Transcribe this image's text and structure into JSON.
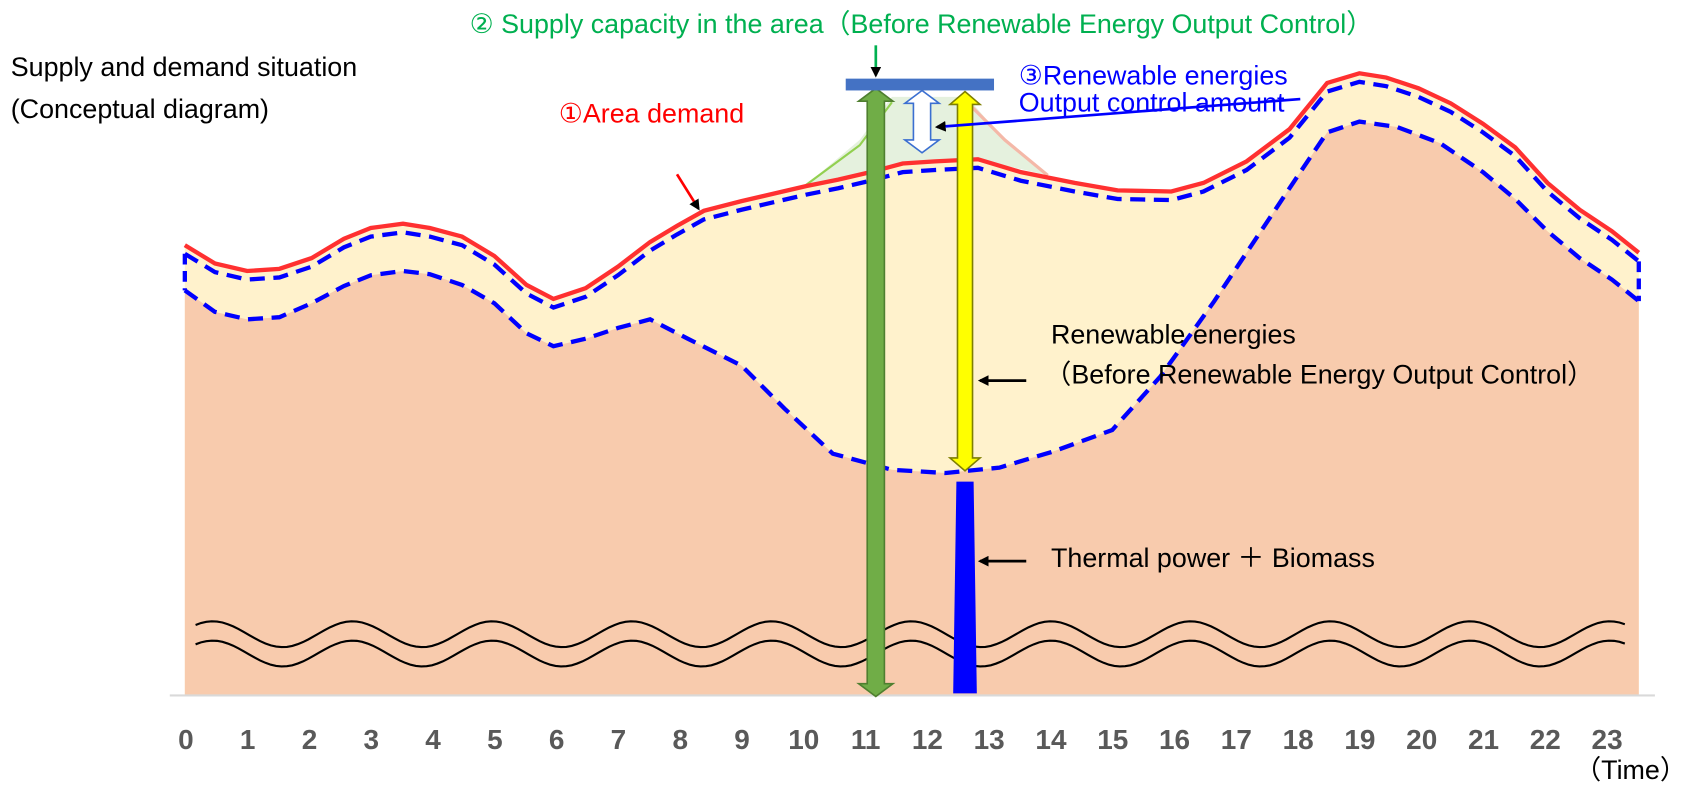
{
  "title": [
    "Supply and demand situation",
    "(Conceptual diagram)"
  ],
  "labels": {
    "supply_capacity": "② Supply capacity in the area（Before Renewable Energy Output Control）",
    "area_demand": "①Area demand",
    "control_amount": [
      "③Renewable energies",
      "Output control amount"
    ],
    "renewables": [
      "Renewable energies",
      "（Before Renewable Energy Output Control）"
    ],
    "thermal": "Thermal power ＋ Biomass"
  },
  "axis": {
    "ticks": [
      0,
      1,
      2,
      3,
      4,
      5,
      6,
      7,
      8,
      9,
      10,
      11,
      12,
      13,
      14,
      15,
      16,
      17,
      18,
      19,
      20,
      21,
      22,
      23
    ],
    "label": "（Time）"
  }
}
